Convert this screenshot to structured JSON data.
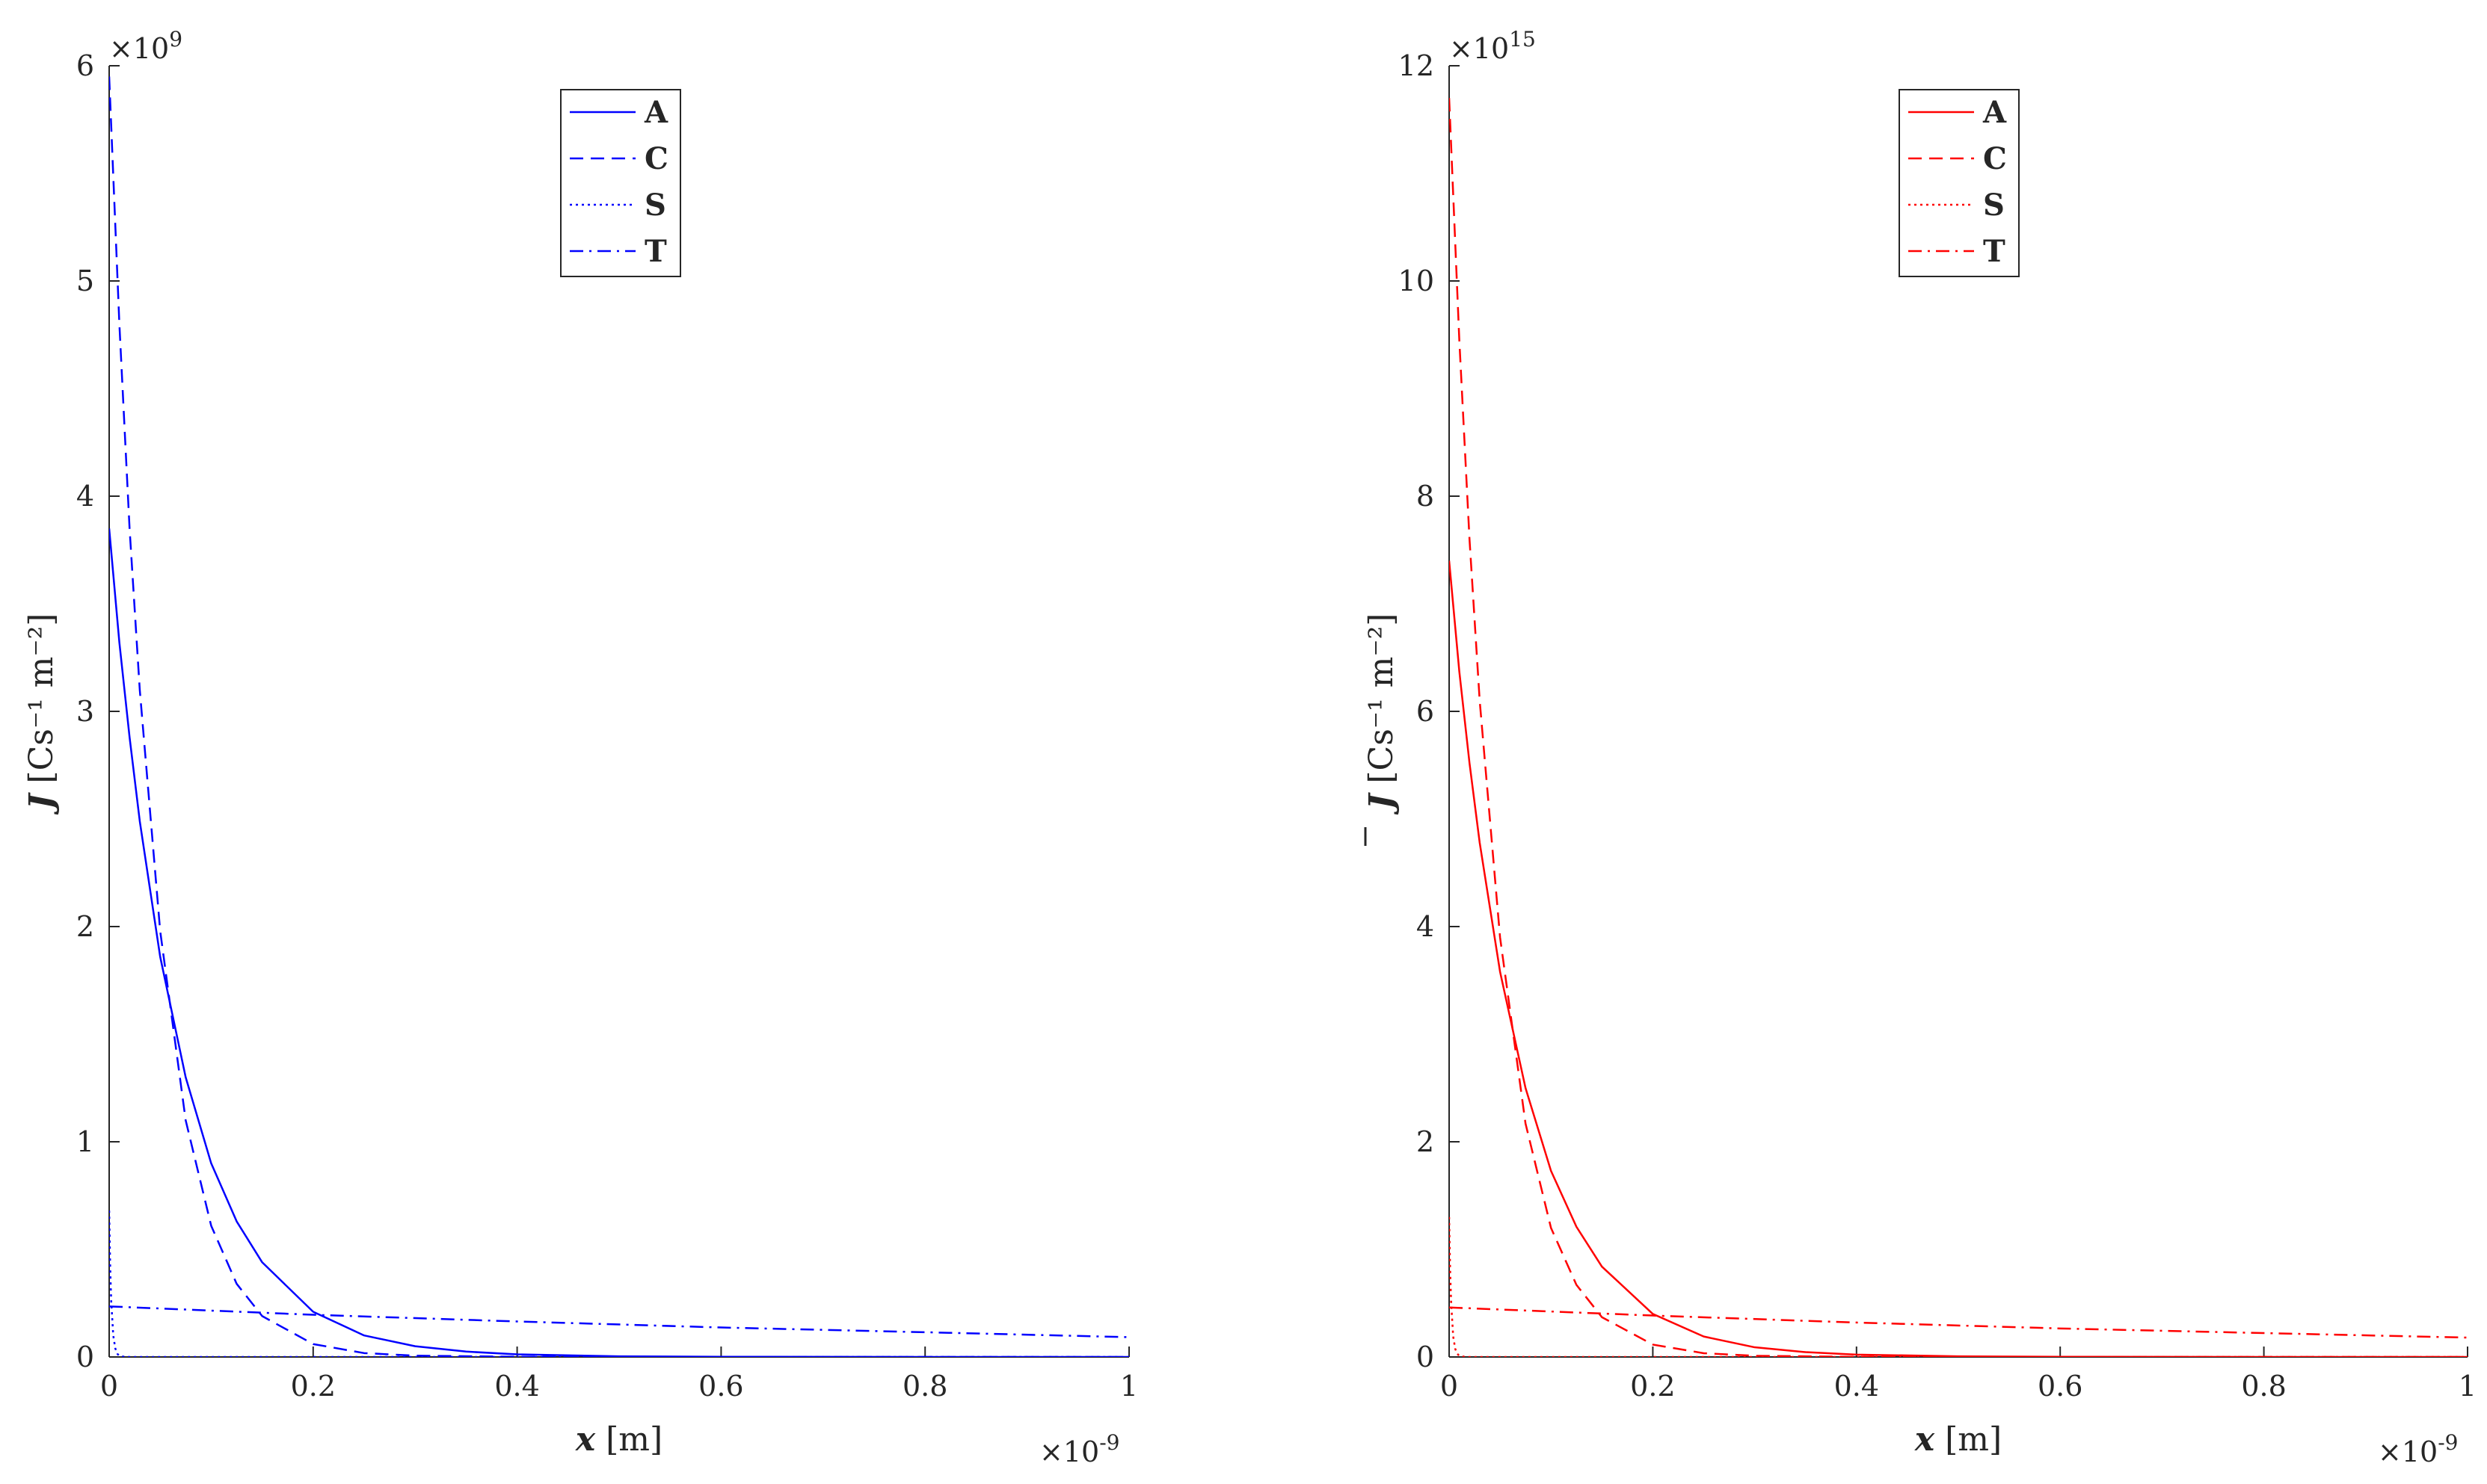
{
  "chart_data": [
    {
      "type": "line",
      "color": "#0000ff",
      "x": {
        "label": "x [m]",
        "var": "x",
        "unit": "[m]",
        "lim": [
          0,
          1e-09
        ],
        "ticks": [
          0,
          0.2,
          0.4,
          0.6,
          0.8,
          1
        ],
        "tick_labels": [
          "0",
          "0.2",
          "0.4",
          "0.6",
          "0.8",
          "1"
        ],
        "exponent_label": "×10",
        "exponent": "-9"
      },
      "y": {
        "label_var": "J",
        "label_unit": "[Cs⁻¹ m⁻²]",
        "lim": [
          0,
          6000000000.0
        ],
        "ticks": [
          0,
          1,
          2,
          3,
          4,
          5,
          6
        ],
        "tick_labels": [
          "0",
          "1",
          "2",
          "3",
          "4",
          "5",
          "6"
        ],
        "exponent_label": "×10",
        "exponent": "9"
      },
      "legend": {
        "position": "top-center",
        "entries": [
          {
            "name": "A",
            "style": "solid"
          },
          {
            "name": "C",
            "style": "dashed"
          },
          {
            "name": "S",
            "style": "dotted"
          },
          {
            "name": "T",
            "style": "dashdot"
          }
        ]
      },
      "series": [
        {
          "name": "A",
          "style": "solid",
          "x": [
            0,
            1e-11,
            2e-11,
            3e-11,
            5e-11,
            7.5e-11,
            1e-10,
            1.25e-10,
            1.5e-10,
            2e-10,
            2.5e-10,
            3e-10,
            3.5e-10,
            4e-10,
            5e-10,
            6e-10,
            8e-10,
            1e-09
          ],
          "y": [
            3850000000.0,
            3320000000.0,
            2880000000.0,
            2490000000.0,
            1860000000.0,
            1300000000.0,
            900000000.0,
            630000000.0,
            440000000.0,
            210000000.0,
            100000000.0,
            50000000.0,
            25000000.0,
            12000000.0,
            3000000.0,
            1000000.0,
            0,
            0
          ]
        },
        {
          "name": "C",
          "style": "dashed",
          "x": [
            0,
            1e-11,
            2e-11,
            3e-11,
            5e-11,
            7.5e-11,
            1e-10,
            1.25e-10,
            1.5e-10,
            2e-10,
            2.5e-10,
            3e-10,
            4e-10,
            5e-10,
            1e-09
          ],
          "y": [
            5950000000.0,
            4800000000.0,
            3850000000.0,
            3100000000.0,
            1980000000.0,
            1100000000.0,
            610000000.0,
            340000000.0,
            190000000.0,
            60000000.0,
            18000000.0,
            6000000.0,
            1000000.0,
            0,
            0
          ]
        },
        {
          "name": "S",
          "style": "dotted",
          "x": [
            0,
            1e-12,
            2e-12,
            4e-12,
            6e-12,
            8e-12,
            1e-11,
            1.5e-11,
            2e-11,
            1e-09
          ],
          "y": [
            680000000.0,
            420000000.0,
            260000000.0,
            100000000.0,
            40000000.0,
            15000000.0,
            5000000.0,
            1000000.0,
            0,
            0
          ]
        },
        {
          "name": "T",
          "style": "dashdot",
          "x": [
            0,
            2e-10,
            4e-10,
            6e-10,
            8e-10,
            1e-09
          ],
          "y": [
            235000000.0,
            196000000.0,
            165000000.0,
            137000000.0,
            115000000.0,
            92000000.0
          ]
        }
      ]
    },
    {
      "type": "line",
      "color": "#ff0000",
      "x": {
        "label": "x [m]",
        "var": "x",
        "unit": "[m]",
        "lim": [
          0,
          1e-09
        ],
        "ticks": [
          0,
          0.2,
          0.4,
          0.6,
          0.8,
          1
        ],
        "tick_labels": [
          "0",
          "0.2",
          "0.4",
          "0.6",
          "0.8",
          "1"
        ],
        "exponent_label": "×10",
        "exponent": "-9"
      },
      "y": {
        "label_var": "J",
        "label_bar": true,
        "label_unit": "[Cs⁻¹ m⁻²]",
        "lim": [
          0,
          1.2e+16
        ],
        "ticks": [
          0,
          2,
          4,
          6,
          8,
          10,
          12
        ],
        "tick_labels": [
          "0",
          "2",
          "4",
          "6",
          "8",
          "10",
          "12"
        ],
        "exponent_label": "×10",
        "exponent": "15"
      },
      "legend": {
        "position": "top-center",
        "entries": [
          {
            "name": "A",
            "style": "solid"
          },
          {
            "name": "C",
            "style": "dashed"
          },
          {
            "name": "S",
            "style": "dotted"
          },
          {
            "name": "T",
            "style": "dashdot"
          }
        ]
      },
      "series": [
        {
          "name": "A",
          "style": "solid",
          "x": [
            0,
            1e-11,
            2e-11,
            3e-11,
            5e-11,
            7.5e-11,
            1e-10,
            1.25e-10,
            1.5e-10,
            2e-10,
            2.5e-10,
            3e-10,
            3.5e-10,
            4e-10,
            5e-10,
            6e-10,
            8e-10,
            1e-09
          ],
          "y": [
            7400000000000000.0,
            6370000000000000.0,
            5520000000000000.0,
            4780000000000000.0,
            3580000000000000.0,
            2500000000000000.0,
            1730000000000000.0,
            1210000000000000.0,
            840000000000000.0,
            400000000000000.0,
            190000000000000.0,
            90000000000000.0,
            45000000000000.0,
            22000000000000.0,
            6000000000000.0,
            2000000000000.0,
            0,
            0
          ]
        },
        {
          "name": "C",
          "style": "dashed",
          "x": [
            0,
            1e-11,
            2e-11,
            3e-11,
            5e-11,
            7.5e-11,
            1e-10,
            1.25e-10,
            1.5e-10,
            2e-10,
            2.5e-10,
            3e-10,
            4e-10,
            5e-10,
            1e-09
          ],
          "y": [
            1.17e+16,
            9450000000000000.0,
            7600000000000000.0,
            6100000000000000.0,
            3900000000000000.0,
            2170000000000000.0,
            1200000000000000.0,
            670000000000000.0,
            370000000000000.0,
            115000000000000.0,
            35000000000000.0,
            11000000000000.0,
            1000000000000.0,
            0,
            0
          ]
        },
        {
          "name": "S",
          "style": "dotted",
          "x": [
            0,
            1e-12,
            2e-12,
            4e-12,
            6e-12,
            8e-12,
            1e-11,
            1.5e-11,
            2e-11,
            1e-09
          ],
          "y": [
            1300000000000000.0,
            800000000000000.0,
            500000000000000.0,
            190000000000000.0,
            75000000000000.0,
            30000000000000.0,
            10000000000000.0,
            2000000000000.0,
            0,
            0
          ]
        },
        {
          "name": "T",
          "style": "dashdot",
          "x": [
            0,
            2e-10,
            4e-10,
            6e-10,
            8e-10,
            1e-09
          ],
          "y": [
            460000000000000.0,
            385000000000000.0,
            320000000000000.0,
            265000000000000.0,
            222000000000000.0,
            180000000000000.0
          ]
        }
      ]
    }
  ]
}
